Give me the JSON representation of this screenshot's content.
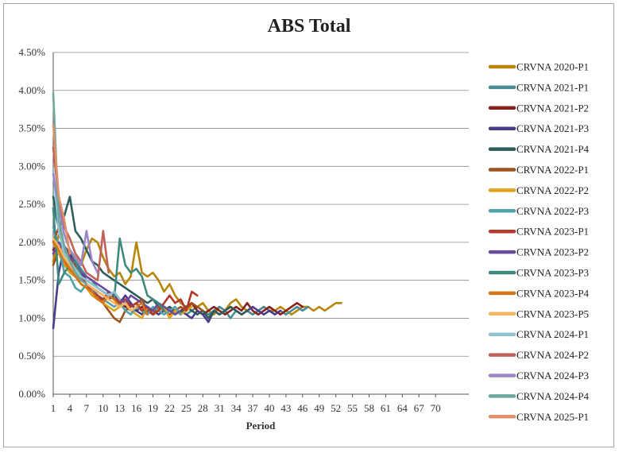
{
  "chart_data": {
    "type": "line",
    "title": "ABS Total",
    "xlabel": "Period",
    "ylabel": "",
    "xlim": [
      1,
      76
    ],
    "ylim": [
      0,
      4.5
    ],
    "x_ticks": [
      1,
      4,
      7,
      10,
      13,
      16,
      19,
      22,
      25,
      28,
      31,
      34,
      37,
      40,
      43,
      46,
      49,
      52,
      55,
      58,
      61,
      64,
      67,
      70
    ],
    "y_ticks": [
      0,
      0.5,
      1.0,
      1.5,
      2.0,
      2.5,
      3.0,
      3.5,
      4.0,
      4.5
    ],
    "y_tick_labels": [
      "0.00%",
      "0.50%",
      "1.00%",
      "1.50%",
      "2.00%",
      "2.50%",
      "3.00%",
      "3.50%",
      "4.00%",
      "4.50%"
    ],
    "grid": "horizontal",
    "legend_position": "right",
    "series": [
      {
        "name": "CRVNA 2020-P1",
        "color": "#b8860b",
        "values": [
          1.75,
          2.1,
          1.95,
          1.85,
          1.8,
          1.7,
          1.9,
          2.05,
          2.0,
          1.8,
          1.65,
          1.55,
          1.6,
          1.45,
          1.55,
          2.0,
          1.6,
          1.55,
          1.6,
          1.5,
          1.35,
          1.45,
          1.3,
          1.2,
          1.15,
          1.1,
          1.15,
          1.2,
          1.1,
          1.05,
          1.15,
          1.1,
          1.2,
          1.25,
          1.15,
          1.1,
          1.05,
          1.1,
          1.15,
          1.1,
          1.1,
          1.15,
          1.1,
          1.05,
          1.1,
          1.15,
          1.15,
          1.1,
          1.15,
          1.1,
          1.15,
          1.2,
          1.2
        ]
      },
      {
        "name": "CRVNA 2021-P1",
        "color": "#4a8c93",
        "values": [
          2.45,
          2.2,
          1.95,
          1.85,
          1.75,
          1.65,
          1.55,
          1.5,
          1.4,
          1.35,
          1.3,
          1.25,
          1.2,
          1.15,
          1.1,
          1.1,
          1.15,
          1.1,
          1.05,
          1.1,
          1.15,
          1.1,
          1.05,
          1.1,
          1.05,
          1.1,
          1.15,
          1.1,
          1.05,
          1.1,
          1.15,
          1.1,
          1.0,
          1.1,
          1.05,
          1.1,
          1.05,
          1.1,
          1.15,
          1.1,
          1.05,
          1.1,
          1.05,
          1.1,
          1.15,
          1.1,
          1.15
        ]
      },
      {
        "name": "CRVNA 2021-P2",
        "color": "#8b1f1a",
        "values": [
          1.9,
          2.0,
          1.75,
          1.6,
          1.55,
          1.5,
          1.45,
          1.4,
          1.35,
          1.3,
          1.25,
          1.3,
          1.2,
          1.15,
          1.2,
          1.1,
          1.15,
          1.1,
          1.05,
          1.1,
          1.15,
          1.1,
          1.05,
          1.1,
          1.15,
          1.2,
          1.1,
          1.05,
          1.1,
          1.15,
          1.1,
          1.05,
          1.1,
          1.15,
          1.1,
          1.2,
          1.1,
          1.05,
          1.1,
          1.15,
          1.1,
          1.05,
          1.1,
          1.15,
          1.2,
          1.15
        ]
      },
      {
        "name": "CRVNA 2021-P3",
        "color": "#4b3b8a",
        "values": [
          0.87,
          1.6,
          1.95,
          1.85,
          1.7,
          1.6,
          1.5,
          1.45,
          1.4,
          1.35,
          1.3,
          1.25,
          1.2,
          1.3,
          1.2,
          1.1,
          1.05,
          1.15,
          1.1,
          1.05,
          1.1,
          1.15,
          1.05,
          1.1,
          1.05,
          1.0,
          1.1,
          1.05,
          0.95,
          1.1,
          1.05,
          1.1,
          1.15,
          1.1,
          1.05,
          1.1,
          1.15,
          1.1,
          1.05,
          1.1,
          1.05,
          1.1
        ]
      },
      {
        "name": "CRVNA 2021-P4",
        "color": "#2e5e5a",
        "values": [
          2.6,
          2.2,
          2.35,
          2.6,
          2.15,
          2.05,
          1.9,
          1.75,
          1.7,
          1.6,
          1.55,
          1.5,
          1.45,
          1.4,
          1.35,
          1.3,
          1.25,
          1.2,
          1.25,
          1.15,
          1.1,
          1.15,
          1.1,
          1.05,
          1.15,
          1.1,
          1.05,
          1.1,
          1.0,
          1.1,
          1.05,
          1.1,
          1.15,
          1.1,
          1.05,
          1.1
        ]
      },
      {
        "name": "CRVNA 2022-P1",
        "color": "#a0521a",
        "values": [
          1.7,
          1.9,
          1.8,
          1.65,
          1.6,
          1.5,
          1.45,
          1.35,
          1.3,
          1.2,
          1.1,
          1.0,
          0.95,
          1.1,
          1.15,
          1.2,
          1.25,
          1.1,
          1.05,
          1.15,
          1.1,
          1.05,
          1.1,
          1.15,
          1.1,
          1.2,
          1.15,
          1.1
        ]
      },
      {
        "name": "CRVNA 2022-P2",
        "color": "#e0a21a",
        "values": [
          2.0,
          1.85,
          1.7,
          1.6,
          1.55,
          1.45,
          1.4,
          1.3,
          1.25,
          1.2,
          1.15,
          1.1,
          1.15,
          1.2,
          1.1,
          1.05,
          1.0,
          1.15,
          1.05,
          1.1,
          1.15,
          1.0,
          1.1,
          1.05,
          1.1,
          1.15
        ]
      },
      {
        "name": "CRVNA 2022-P3",
        "color": "#4fa3ab",
        "values": [
          2.2,
          1.95,
          1.6,
          1.55,
          1.4,
          1.35,
          1.45,
          1.4,
          1.3,
          1.25,
          1.2,
          1.15,
          1.2,
          1.1,
          1.05,
          1.15,
          1.1,
          1.05,
          1.15,
          1.1,
          1.05,
          1.1,
          1.15,
          1.05
        ]
      },
      {
        "name": "CRVNA 2023-P1",
        "color": "#b03a2e",
        "values": [
          2.0,
          2.2,
          1.95,
          1.8,
          1.7,
          1.55,
          1.45,
          1.35,
          1.3,
          1.25,
          1.35,
          1.3,
          1.2,
          1.25,
          1.15,
          1.2,
          1.1,
          1.15,
          1.05,
          1.1,
          1.2,
          1.3,
          1.2,
          1.25,
          1.1,
          1.35,
          1.3
        ]
      },
      {
        "name": "CRVNA 2023-P2",
        "color": "#6a4b9c",
        "values": [
          1.85,
          2.0,
          1.9,
          1.8,
          1.75,
          1.6,
          1.55,
          1.5,
          1.45,
          1.4,
          1.35,
          1.3,
          1.25,
          1.2,
          1.3,
          1.25,
          1.2,
          1.15,
          1.1,
          1.2,
          1.15,
          1.1,
          1.05,
          1.1
        ]
      },
      {
        "name": "CRVNA 2023-P3",
        "color": "#3f8a7e",
        "values": [
          2.45,
          1.45,
          1.6,
          1.7,
          1.75,
          1.55,
          1.5,
          1.45,
          1.4,
          1.35,
          1.3,
          1.25,
          2.05,
          1.7,
          1.6,
          1.65,
          1.55,
          1.3,
          1.25,
          1.2,
          1.1
        ]
      },
      {
        "name": "CRVNA 2023-P4",
        "color": "#d4741a",
        "values": [
          2.0,
          1.9,
          1.75,
          1.65,
          1.55,
          1.45,
          1.4,
          1.35,
          1.25,
          1.2,
          1.3,
          1.25,
          1.15,
          1.2,
          1.1,
          1.15,
          1.2,
          1.05
        ]
      },
      {
        "name": "CRVNA 2023-P5",
        "color": "#f5b563",
        "values": [
          2.05,
          1.95,
          1.8,
          1.7,
          1.6,
          1.5,
          1.45,
          1.4,
          1.35,
          1.3,
          1.25,
          1.2,
          1.15,
          1.2,
          1.1,
          1.15
        ]
      },
      {
        "name": "CRVNA 2024-P1",
        "color": "#8cc4d0",
        "values": [
          2.95,
          2.15,
          1.85,
          1.75,
          1.65,
          1.55,
          1.5,
          1.45,
          1.4,
          1.35,
          1.3,
          1.35,
          1.25
        ]
      },
      {
        "name": "CRVNA 2024-P2",
        "color": "#c0605a",
        "values": [
          3.25,
          2.55,
          2.2,
          2.05,
          1.85,
          1.75,
          1.6,
          1.55,
          1.5,
          2.15,
          1.6
        ]
      },
      {
        "name": "CRVNA 2024-P3",
        "color": "#9a86c6",
        "values": [
          2.9,
          2.45,
          2.1,
          1.9,
          1.8,
          1.7,
          2.15,
          1.75,
          1.6
        ]
      },
      {
        "name": "CRVNA 2024-P4",
        "color": "#6da89b",
        "values": [
          3.97,
          2.3,
          1.95,
          1.75,
          1.6,
          1.5,
          1.45
        ]
      },
      {
        "name": "CRVNA 2025-P1",
        "color": "#e0916a",
        "values": [
          3.55,
          2.6,
          2.3,
          1.85
        ]
      }
    ]
  }
}
